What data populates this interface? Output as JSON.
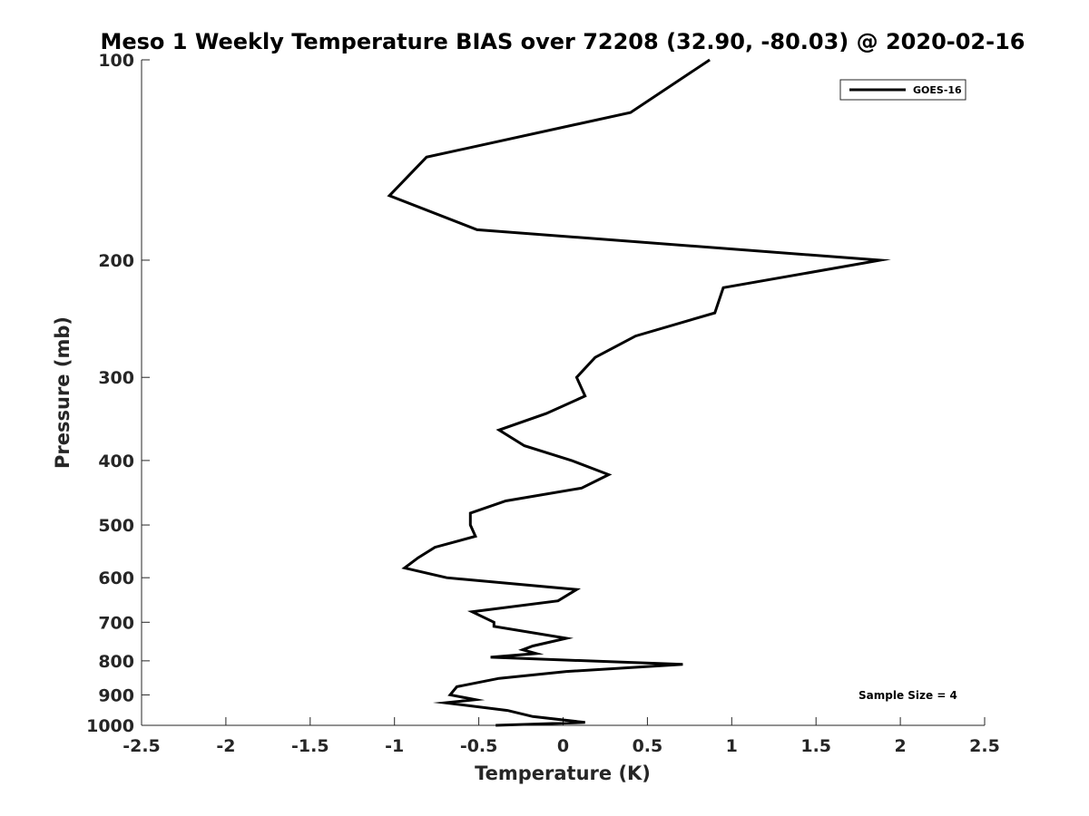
{
  "chart_data": {
    "type": "line",
    "title": "Meso 1 Weekly Temperature BIAS over 72208 (32.90, -80.03) @ 2020-02-16",
    "xlabel": "Temperature (K)",
    "ylabel": "Pressure (mb)",
    "xlim": [
      -2.5,
      2.5
    ],
    "ylim": [
      100,
      1000
    ],
    "yscale": "log",
    "yreversed": true,
    "xticks": [
      -2.5,
      -2,
      -1.5,
      -1,
      -0.5,
      0,
      0.5,
      1,
      1.5,
      2,
      2.5
    ],
    "xtick_labels": [
      "-2.5",
      "-2",
      "-1.5",
      "-1",
      "-0.5",
      "0",
      "0.5",
      "1",
      "1.5",
      "2",
      "2.5"
    ],
    "yticks": [
      100,
      200,
      300,
      400,
      500,
      600,
      700,
      800,
      900,
      1000
    ],
    "ytick_labels": [
      "100",
      "200",
      "300",
      "400",
      "500",
      "600",
      "700",
      "800",
      "900",
      "1000"
    ],
    "grid": false,
    "legend": {
      "placement": "top-right",
      "entries": [
        "GOES-16"
      ]
    },
    "annotation": "Sample Size = 4",
    "series": [
      {
        "name": "GOES-16",
        "color": "#000000",
        "points": [
          [
            0.87,
            100
          ],
          [
            0.4,
            120
          ],
          [
            -0.81,
            140
          ],
          [
            -1.03,
            160
          ],
          [
            -0.51,
            180
          ],
          [
            1.88,
            200
          ],
          [
            0.95,
            220
          ],
          [
            0.9,
            240
          ],
          [
            0.43,
            260
          ],
          [
            0.19,
            280
          ],
          [
            0.08,
            300
          ],
          [
            0.13,
            320
          ],
          [
            -0.1,
            340
          ],
          [
            -0.38,
            360
          ],
          [
            -0.23,
            380
          ],
          [
            0.05,
            400
          ],
          [
            0.27,
            420
          ],
          [
            0.11,
            440
          ],
          [
            -0.34,
            460
          ],
          [
            -0.55,
            480
          ],
          [
            -0.55,
            500
          ],
          [
            -0.52,
            520
          ],
          [
            -0.76,
            540
          ],
          [
            -0.86,
            560
          ],
          [
            -0.94,
            580
          ],
          [
            -0.69,
            600
          ],
          [
            0.08,
            625
          ],
          [
            -0.03,
            650
          ],
          [
            -0.54,
            675
          ],
          [
            -0.41,
            700
          ],
          [
            -0.41,
            710
          ],
          [
            0.02,
            740
          ],
          [
            -0.18,
            760
          ],
          [
            -0.24,
            770
          ],
          [
            -0.16,
            780
          ],
          [
            -0.43,
            790
          ],
          [
            0.71,
            810
          ],
          [
            0.02,
            830
          ],
          [
            -0.38,
            850
          ],
          [
            -0.63,
            875
          ],
          [
            -0.67,
            900
          ],
          [
            -0.52,
            915
          ],
          [
            -0.7,
            925
          ],
          [
            -0.33,
            950
          ],
          [
            -0.18,
            970
          ],
          [
            0.13,
            990
          ],
          [
            -0.4,
            1000
          ]
        ]
      }
    ]
  }
}
